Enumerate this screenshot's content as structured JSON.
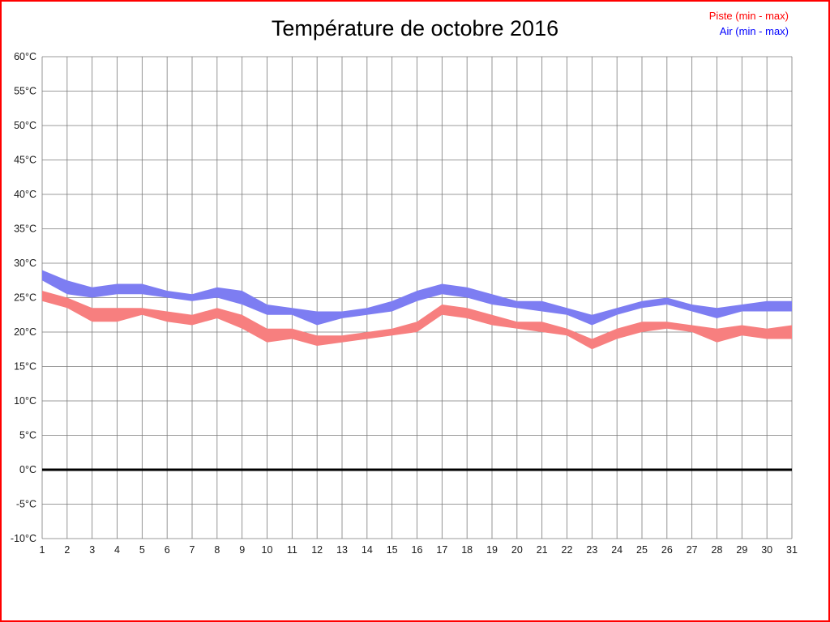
{
  "title": "Température de octobre 2016",
  "legend": [
    {
      "label": "Piste (min - max)",
      "color": "#ff0000"
    },
    {
      "label": "Air (min - max)",
      "color": "#0000ff"
    }
  ],
  "frame_color": "#ff0000",
  "chart_data": {
    "type": "area",
    "title": "Température de octobre 2016",
    "xlabel": "",
    "ylabel": "",
    "ylim": [
      -10,
      60
    ],
    "ytick_step": 5,
    "grid": true,
    "zero_line": true,
    "legend_position": "top-right",
    "x": [
      1,
      2,
      3,
      4,
      5,
      6,
      7,
      8,
      9,
      10,
      11,
      12,
      13,
      14,
      15,
      16,
      17,
      18,
      19,
      20,
      21,
      22,
      23,
      24,
      25,
      26,
      27,
      28,
      29,
      30,
      31
    ],
    "series": [
      {
        "name": "Piste (min - max)",
        "color": "#f77f7f",
        "max": [
          26,
          25,
          23.5,
          23.5,
          23.5,
          23,
          22.5,
          23.5,
          22.5,
          20.5,
          20.5,
          19.5,
          19.5,
          20,
          20.5,
          21.5,
          24,
          23.5,
          22.5,
          21.5,
          21.5,
          20.5,
          19,
          20.5,
          21.5,
          21.5,
          21,
          20.5,
          21,
          20.5,
          21
        ],
        "min": [
          24.5,
          23.5,
          21.5,
          21.5,
          22.5,
          21.5,
          21,
          22,
          20.5,
          18.5,
          19,
          18,
          18.5,
          19,
          19.5,
          20,
          22.5,
          22,
          21,
          20.5,
          20,
          19.5,
          17.5,
          19,
          20,
          20.5,
          20,
          18.5,
          19.5,
          19,
          19
        ]
      },
      {
        "name": "Air (min - max)",
        "color": "#7d7df2",
        "max": [
          29,
          27.5,
          26.5,
          27,
          27,
          26,
          25.5,
          26.5,
          26,
          24,
          23.5,
          23,
          23,
          23.5,
          24.5,
          26,
          27,
          26.5,
          25.5,
          24.5,
          24.5,
          23.5,
          22.5,
          23.5,
          24.5,
          25,
          24,
          23.5,
          24,
          24.5,
          24.5
        ],
        "min": [
          27.5,
          25.5,
          25,
          25.5,
          25.5,
          25,
          24.5,
          25,
          24,
          22.5,
          22.5,
          21,
          22,
          22.5,
          23,
          24.5,
          25.5,
          25,
          24,
          23.5,
          23,
          22.5,
          21,
          22.5,
          23.5,
          24,
          23,
          22,
          23,
          23,
          23
        ]
      }
    ]
  },
  "axes": {
    "y_ticks": [
      "60°C",
      "55°C",
      "50°C",
      "45°C",
      "40°C",
      "35°C",
      "30°C",
      "25°C",
      "20°C",
      "15°C",
      "10°C",
      "5°C",
      "0°C",
      "-5°C",
      "-10°C"
    ],
    "x_ticks": [
      "1",
      "2",
      "3",
      "4",
      "5",
      "6",
      "7",
      "8",
      "9",
      "10",
      "11",
      "12",
      "13",
      "14",
      "15",
      "16",
      "17",
      "18",
      "19",
      "20",
      "21",
      "22",
      "23",
      "24",
      "25",
      "26",
      "27",
      "28",
      "29",
      "30",
      "31"
    ]
  }
}
